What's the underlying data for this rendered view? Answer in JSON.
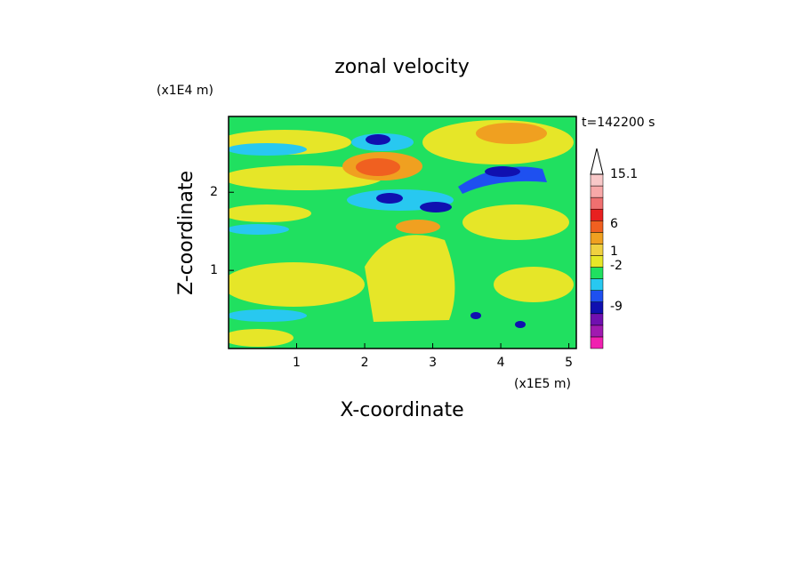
{
  "chart_data": {
    "type": "contour",
    "title": "zonal velocity",
    "x_label": "X-coordinate",
    "y_label": "Z-coordinate",
    "x_unit": "(x1E5 m)",
    "y_unit": "(x1E4 m)",
    "time_label": "t=142200 s",
    "xlim": [
      0,
      5.11
    ],
    "xticks": [
      1,
      2,
      3,
      4,
      5
    ],
    "ylim": [
      0,
      2.97
    ],
    "yticks": [
      1,
      2
    ],
    "colorbar": {
      "colors": [
        "#f020b0",
        "#a01ab0",
        "#7010b0",
        "#1010b0",
        "#1e50f0",
        "#28c8f0",
        "#20e060",
        "#e6e628",
        "#f0d040",
        "#f0a020",
        "#f06020",
        "#e82020",
        "#f07070",
        "#f8a8a8",
        "#f8c8c8"
      ],
      "ticks": [
        15.1,
        6,
        1,
        -2,
        -9
      ]
    }
  }
}
